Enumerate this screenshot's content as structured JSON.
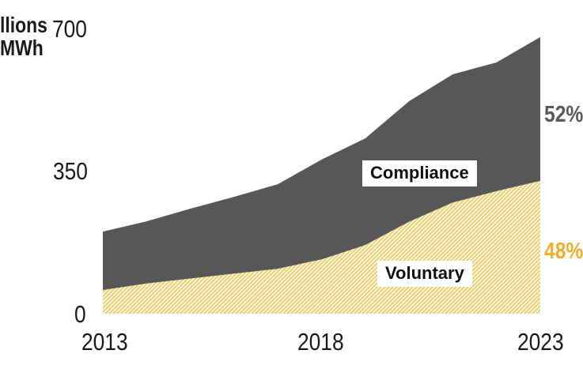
{
  "axis": {
    "y_title_line1": "llions",
    "y_title_line2": "MWh",
    "y_ticks": [
      "700",
      "350",
      "0"
    ],
    "x_ticks": [
      "2013",
      "2018",
      "2023"
    ]
  },
  "labels": {
    "compliance": "Compliance",
    "voluntary": "Voluntary",
    "compliance_pct": "52%",
    "voluntary_pct": "48%"
  },
  "colors": {
    "compliance_area": "#575757",
    "hatch_stripe": "#e8d173",
    "hatch_bg": "#fefcf3",
    "pct_compliance": "#595959",
    "pct_voluntary": "#efaf2e"
  },
  "chart_data": {
    "type": "area",
    "stacked": true,
    "title": "",
    "unit_label_visible": "llions MWh (cut-off 'Millions MWh')",
    "x": [
      2013,
      2014,
      2015,
      2016,
      2017,
      2018,
      2019,
      2020,
      2021,
      2022,
      2023
    ],
    "series": [
      {
        "name": "Compliance",
        "values": [
          143,
          152,
          171,
          188,
          207,
          244,
          261,
          295,
          314,
          315,
          352
        ],
        "end_share_label": "52%"
      },
      {
        "name": "Voluntary",
        "values": [
          58,
          74,
          86,
          98,
          110,
          133,
          168,
          225,
          272,
          300,
          325
        ],
        "end_share_label": "48%"
      }
    ],
    "ylim": [
      0,
      700
    ],
    "yticks": [
      0,
      350,
      700
    ],
    "xticks": [
      2013,
      2018,
      2023
    ],
    "grid": false,
    "legend": "inline-area-labels"
  }
}
